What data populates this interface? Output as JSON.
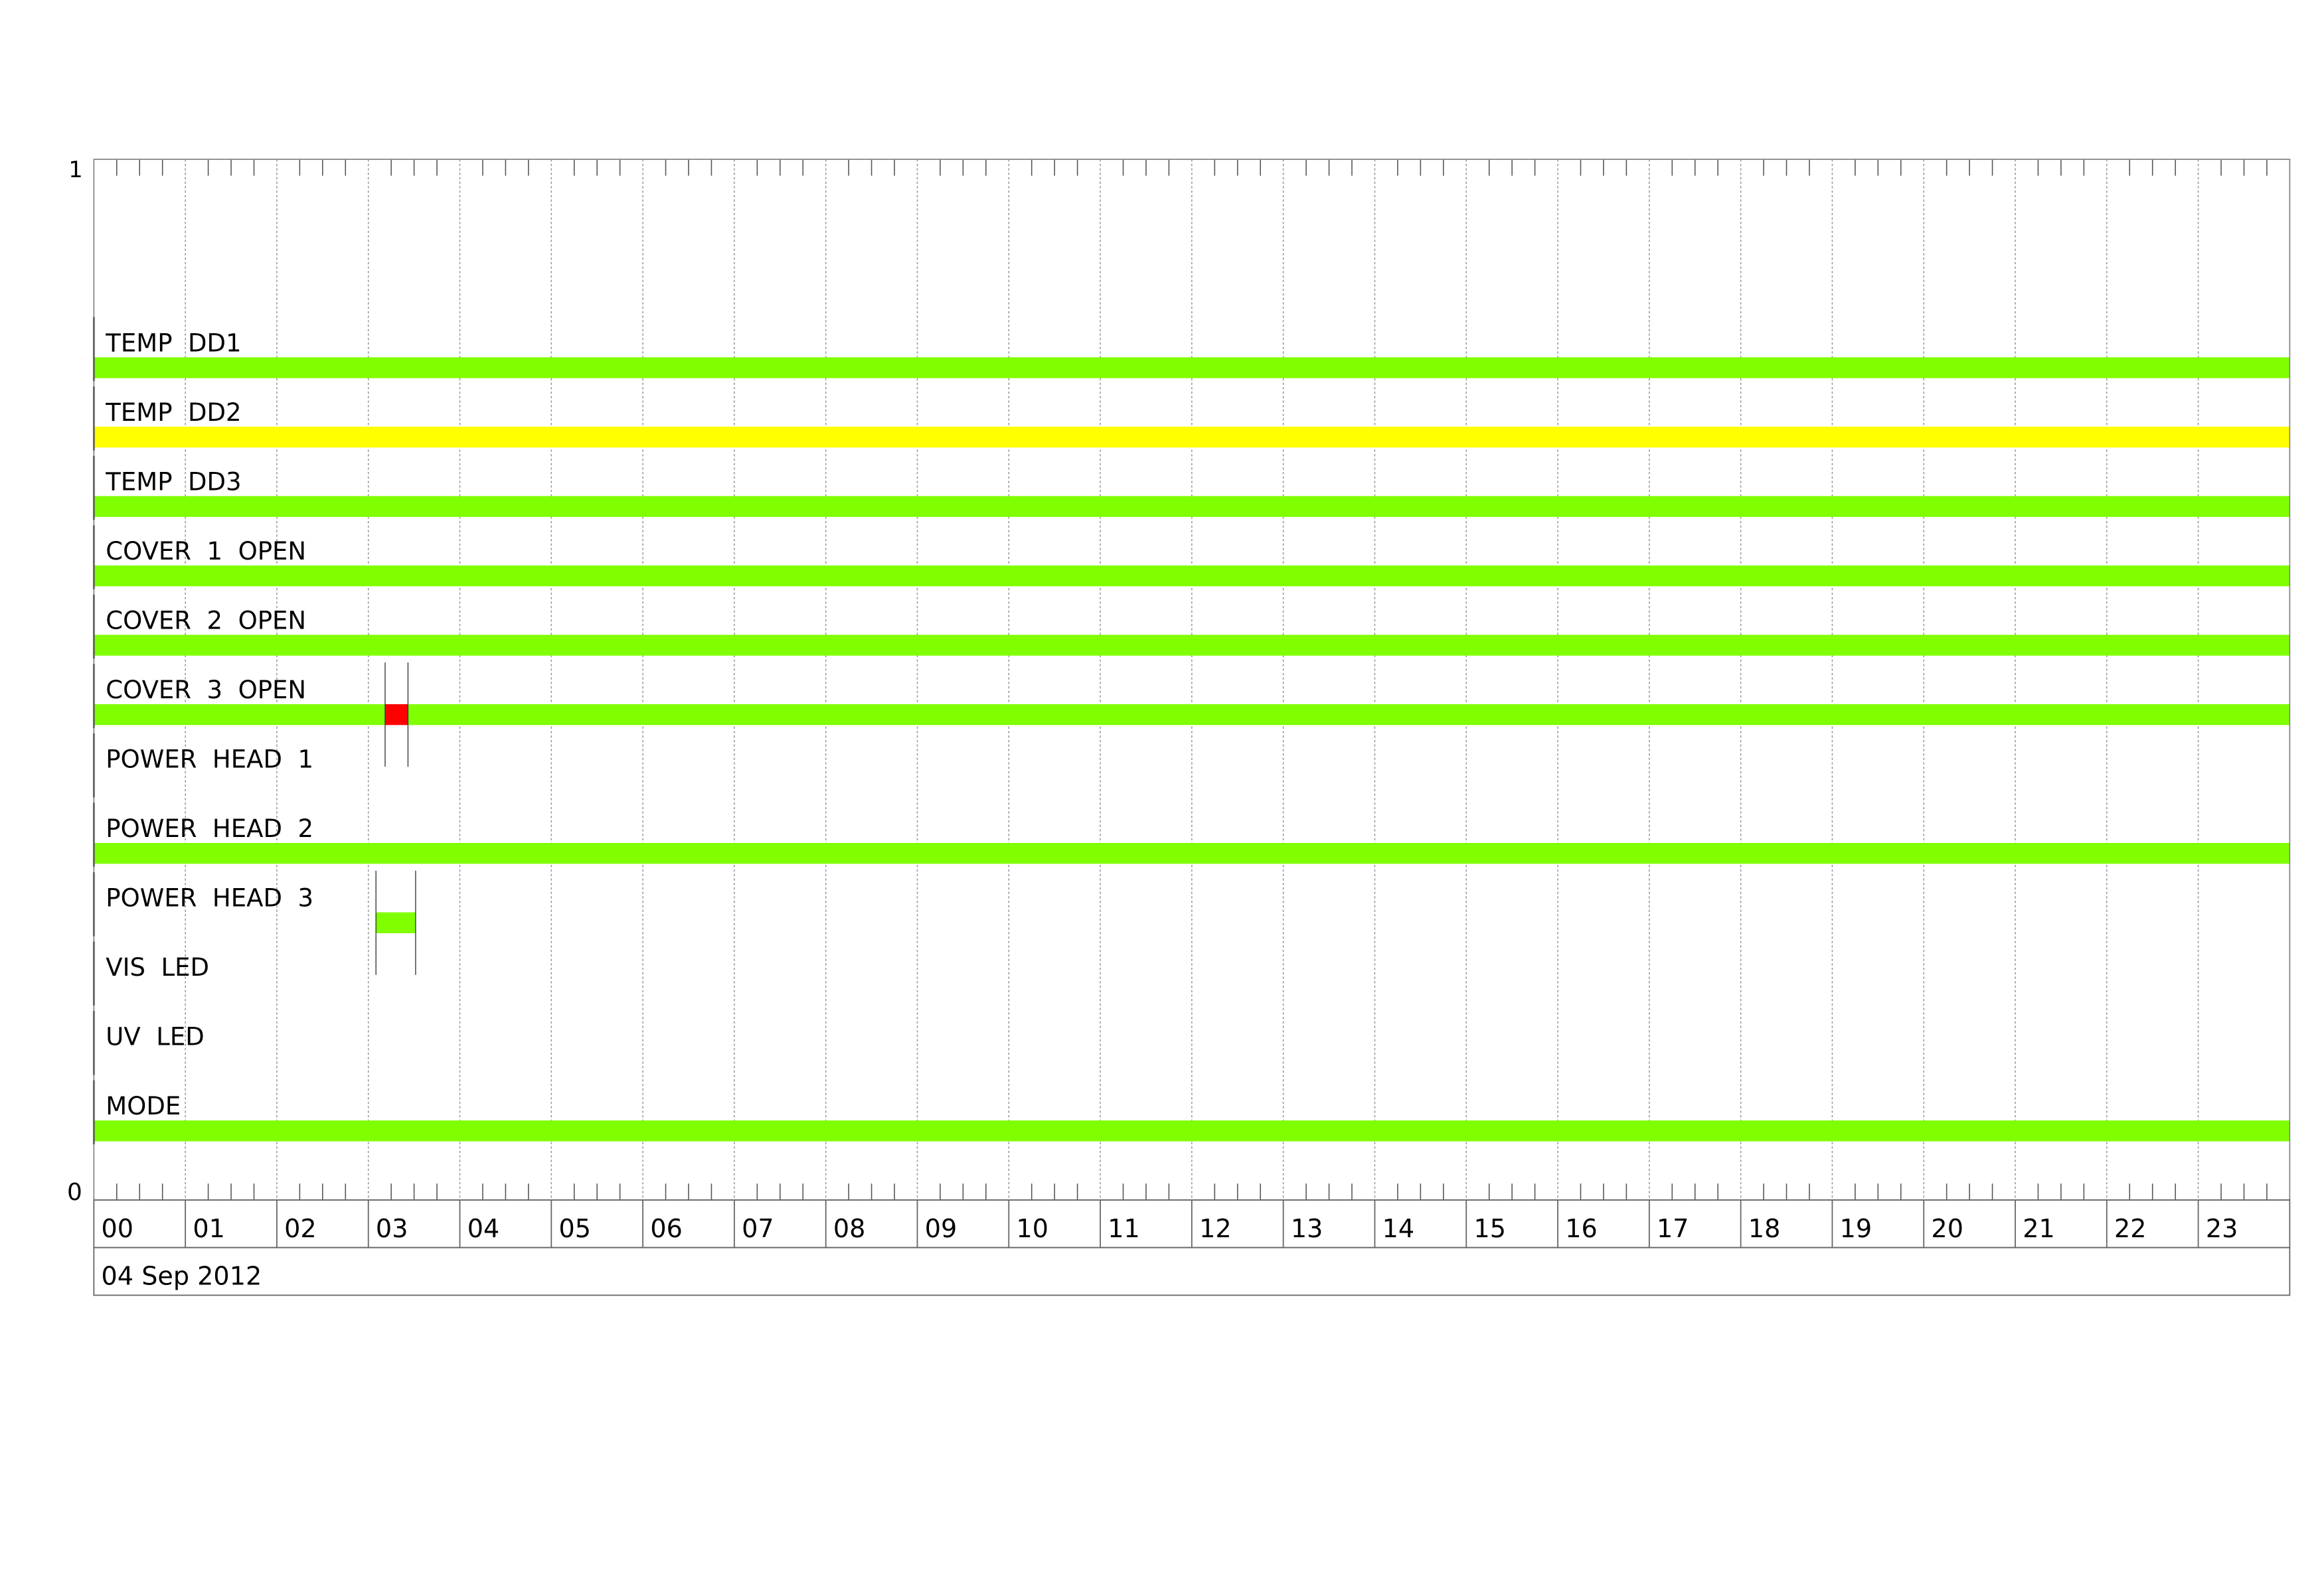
{
  "chart_data": {
    "type": "timeline",
    "y_axis": {
      "top_label": "1",
      "bottom_label": "0"
    },
    "x_axis": {
      "tick_labels": [
        "00",
        "01",
        "02",
        "03",
        "04",
        "05",
        "06",
        "07",
        "08",
        "09",
        "10",
        "11",
        "12",
        "13",
        "14",
        "15",
        "16",
        "17",
        "18",
        "19",
        "20",
        "21",
        "22",
        "23"
      ],
      "range_hours": [
        0,
        24
      ],
      "minor_ticks_per_hour": 4,
      "grid": "dashed vertical lines at each hour",
      "date_label": "04 Sep 2012"
    },
    "colors": {
      "ok": "#80FF00",
      "warning": "#FFFF00",
      "alarm": "#FF0000"
    },
    "rows": [
      {
        "label": "TEMP  DD1",
        "segments": [
          {
            "start": "00:00",
            "end": "24:00",
            "color": "#80FF00"
          }
        ]
      },
      {
        "label": "TEMP  DD2",
        "segments": [
          {
            "start": "00:00",
            "end": "24:00",
            "color": "#FFFF00"
          }
        ]
      },
      {
        "label": "TEMP  DD3",
        "segments": [
          {
            "start": "00:00",
            "end": "24:00",
            "color": "#80FF00"
          }
        ]
      },
      {
        "label": "COVER  1  OPEN",
        "segments": [
          {
            "start": "00:00",
            "end": "24:00",
            "color": "#80FF00"
          }
        ]
      },
      {
        "label": "COVER  2  OPEN",
        "segments": [
          {
            "start": "00:00",
            "end": "24:00",
            "color": "#80FF00"
          }
        ]
      },
      {
        "label": "COVER  3  OPEN",
        "segments": [
          {
            "start": "00:00",
            "end": "03:11",
            "color": "#80FF00"
          },
          {
            "start": "03:11",
            "end": "03:26",
            "color": "#FF0000"
          },
          {
            "start": "03:26",
            "end": "24:00",
            "color": "#80FF00"
          }
        ],
        "markers": [
          "03:11",
          "03:26"
        ]
      },
      {
        "label": "POWER  HEAD  1",
        "segments": []
      },
      {
        "label": "POWER  HEAD  2",
        "segments": [
          {
            "start": "00:00",
            "end": "24:00",
            "color": "#80FF00"
          }
        ]
      },
      {
        "label": "POWER  HEAD  3",
        "segments": [
          {
            "start": "03:05",
            "end": "03:31",
            "color": "#80FF00"
          }
        ],
        "markers": [
          "03:05",
          "03:31"
        ]
      },
      {
        "label": "VIS  LED",
        "segments": []
      },
      {
        "label": "UV  LED",
        "segments": []
      },
      {
        "label": "MODE",
        "segments": [
          {
            "start": "00:00",
            "end": "24:00",
            "color": "#80FF00"
          }
        ]
      }
    ]
  }
}
